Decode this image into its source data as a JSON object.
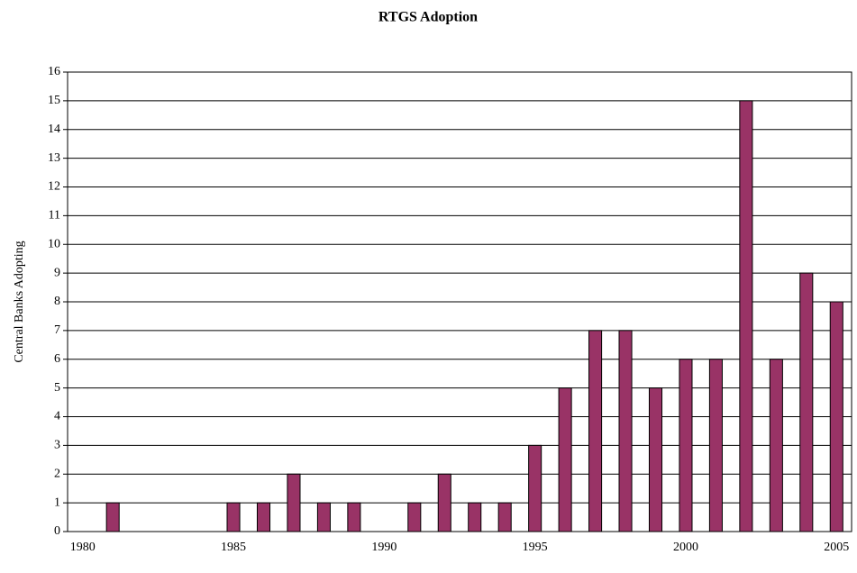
{
  "chart_data": {
    "type": "bar",
    "title": "RTGS Adoption",
    "y_label": "Central Banks Adopting",
    "x": [
      1980,
      1981,
      1982,
      1983,
      1984,
      1985,
      1986,
      1987,
      1988,
      1989,
      1990,
      1991,
      1992,
      1993,
      1994,
      1995,
      1996,
      1997,
      1998,
      1999,
      2000,
      2001,
      2002,
      2003,
      2004,
      2005
    ],
    "values": [
      0,
      1,
      0,
      0,
      0,
      1,
      1,
      2,
      1,
      1,
      0,
      1,
      2,
      1,
      1,
      3,
      5,
      7,
      7,
      5,
      6,
      6,
      15,
      6,
      9,
      8
    ],
    "color": "#993366",
    "xlim": [
      1979.5,
      2005.5
    ],
    "xticks": [
      1980,
      1985,
      1990,
      1995,
      2000,
      2005
    ],
    "ylim": [
      0,
      16
    ],
    "yticks": [
      0,
      1,
      2,
      3,
      4,
      5,
      6,
      7,
      8,
      9,
      10,
      11,
      12,
      13,
      14,
      15,
      16
    ],
    "grid": true
  }
}
